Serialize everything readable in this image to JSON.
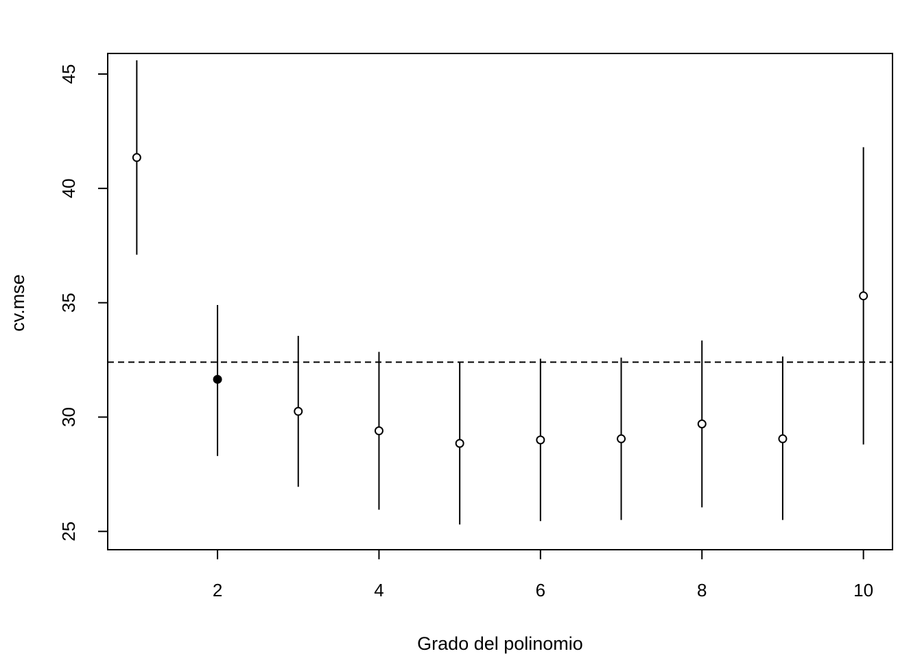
{
  "chart_data": {
    "type": "scatter",
    "xlabel": "Grado del polinomio",
    "ylabel": "cv.mse",
    "xlim": [
      0.64,
      10.36
    ],
    "ylim": [
      24.2,
      45.9
    ],
    "x_ticks": [
      2,
      4,
      6,
      8,
      10
    ],
    "y_ticks": [
      25,
      30,
      35,
      40,
      45
    ],
    "grid": false,
    "legend": "none",
    "reference_line": {
      "y": 32.4,
      "style": "dashed"
    },
    "selected_x": 2,
    "points": [
      {
        "x": 1,
        "y": 41.35,
        "lower": 37.1,
        "upper": 45.6
      },
      {
        "x": 2,
        "y": 31.65,
        "lower": 28.3,
        "upper": 34.9
      },
      {
        "x": 3,
        "y": 30.25,
        "lower": 26.95,
        "upper": 33.55
      },
      {
        "x": 4,
        "y": 29.4,
        "lower": 25.95,
        "upper": 32.85
      },
      {
        "x": 5,
        "y": 28.85,
        "lower": 25.3,
        "upper": 32.4
      },
      {
        "x": 6,
        "y": 29.0,
        "lower": 25.45,
        "upper": 32.55
      },
      {
        "x": 7,
        "y": 29.05,
        "lower": 25.5,
        "upper": 32.6
      },
      {
        "x": 8,
        "y": 29.7,
        "lower": 26.05,
        "upper": 33.35
      },
      {
        "x": 9,
        "y": 29.05,
        "lower": 25.5,
        "upper": 32.65
      },
      {
        "x": 10,
        "y": 35.3,
        "lower": 28.8,
        "upper": 41.8
      }
    ]
  }
}
